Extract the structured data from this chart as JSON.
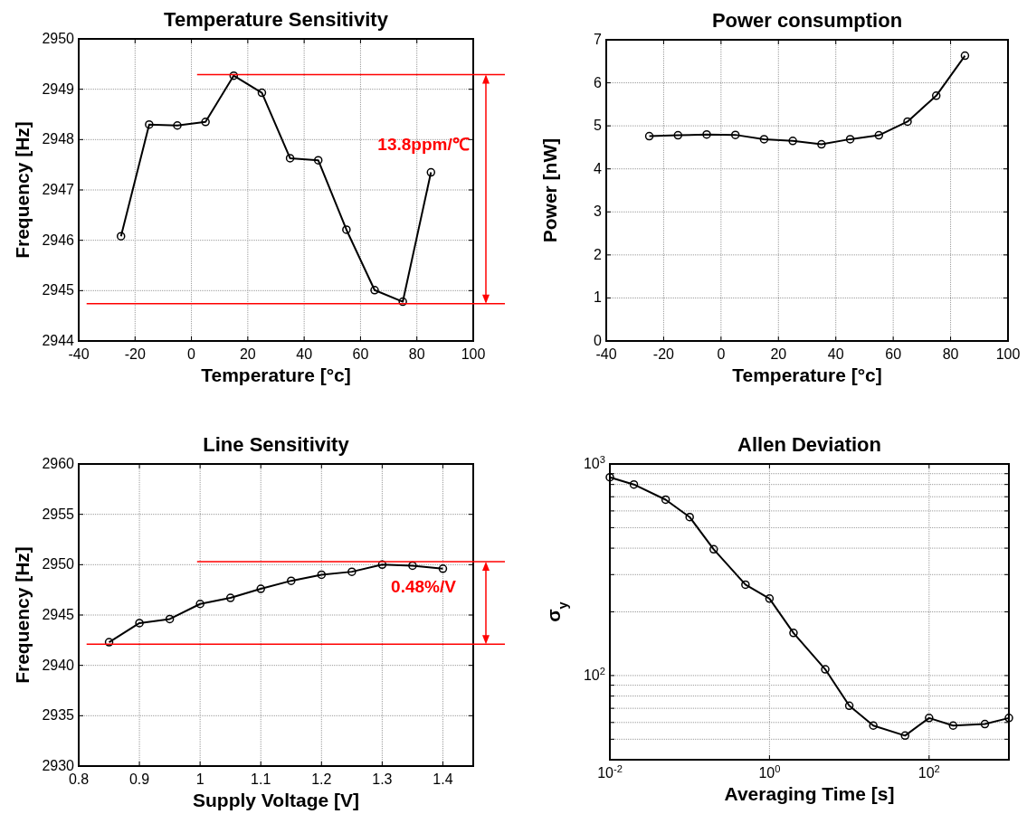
{
  "chart_data": [
    {
      "type": "line",
      "title": "Temperature Sensitivity",
      "xlabel": "Temperature [°c]",
      "ylabel": "Frequency [Hz]",
      "x": [
        -25,
        -15,
        -5,
        5,
        15,
        25,
        35,
        45,
        55,
        65,
        75,
        85
      ],
      "series": [
        {
          "color": "#000000",
          "values": [
            2946.08,
            2948.3,
            2948.28,
            2948.35,
            2949.27,
            2948.93,
            2947.63,
            2947.59,
            2946.21,
            2945.01,
            2944.78,
            2947.35
          ]
        }
      ],
      "xlim": [
        -40,
        100
      ],
      "xticks": [
        -40,
        -20,
        0,
        20,
        40,
        60,
        80,
        100
      ],
      "ylim": [
        2944,
        2950
      ],
      "yticks": [
        2944,
        2945,
        2946,
        2947,
        2948,
        2949,
        2950
      ],
      "grid": true,
      "marker": "circle",
      "line_style": "solid",
      "ref_lines": [
        {
          "axis": "y",
          "value": 2949.29,
          "color": "#ff0000"
        },
        {
          "axis": "y",
          "value": 2944.74,
          "color": "#ff0000"
        }
      ],
      "annotations": [
        "13.8ppm/℃"
      ]
    },
    {
      "type": "line",
      "title": "Power consumption",
      "xlabel": "Temperature [°c]",
      "ylabel": "Power [nW]",
      "x": [
        -25,
        -15,
        -5,
        5,
        15,
        25,
        35,
        45,
        55,
        65,
        75,
        85
      ],
      "series": [
        {
          "color": "#000000",
          "values": [
            4.76,
            4.78,
            4.8,
            4.79,
            4.69,
            4.65,
            4.57,
            4.69,
            4.78,
            5.1,
            5.7,
            6.63
          ]
        }
      ],
      "xlim": [
        -40,
        100
      ],
      "xticks": [
        -40,
        -20,
        0,
        20,
        40,
        60,
        80,
        100
      ],
      "ylim": [
        0,
        7
      ],
      "yticks": [
        0,
        1,
        2,
        3,
        4,
        5,
        6,
        7
      ],
      "grid": true,
      "marker": "circle",
      "line_style": "solid"
    },
    {
      "type": "line",
      "title": "Line Sensitivity",
      "xlabel": "Supply Voltage [V]",
      "ylabel": "Frequency [Hz]",
      "x": [
        0.85,
        0.9,
        0.95,
        1,
        1.05,
        1.1,
        1.15,
        1.2,
        1.25,
        1.3,
        1.35,
        1.4
      ],
      "series": [
        {
          "color": "#000000",
          "values": [
            2942.3,
            2944.2,
            2944.6,
            2946.1,
            2946.7,
            2947.6,
            2948.4,
            2949.0,
            2949.3,
            2950.0,
            2949.9,
            2949.6
          ]
        }
      ],
      "xlim": [
        0.8,
        1.45
      ],
      "xticks": [
        0.8,
        0.9,
        1,
        1.1,
        1.2,
        1.3,
        1.4
      ],
      "ylim": [
        2930,
        2960
      ],
      "yticks": [
        2930,
        2935,
        2940,
        2945,
        2950,
        2955,
        2960
      ],
      "grid": true,
      "marker": "circle",
      "line_style": "solid",
      "ref_lines": [
        {
          "axis": "y",
          "value": 2950.3,
          "color": "#ff0000"
        },
        {
          "axis": "y",
          "value": 2942.1,
          "color": "#ff0000"
        }
      ],
      "annotations": [
        "0.48%/V"
      ]
    },
    {
      "type": "line",
      "title": "Allen Deviation",
      "xlabel": "Averaging Time [s]",
      "ylabel": "σ$_{y}$",
      "x": [
        0.01,
        0.02,
        0.05,
        0.1,
        0.2,
        0.5,
        1,
        2,
        5,
        10,
        20,
        50,
        100,
        200,
        500,
        1000
      ],
      "series": [
        {
          "color": "#000000",
          "values": [
            865,
            800,
            678,
            561,
            395,
            269,
            231,
            159,
            107,
            72,
            58,
            52,
            63,
            58,
            59,
            63
          ]
        }
      ],
      "log": "xy",
      "xlim": [
        0.01,
        1000
      ],
      "xticks": [
        {
          "value": 0.01,
          "label": "10$^{-2}$"
        },
        {
          "value": 1,
          "label": "10$^{0}$"
        },
        {
          "value": 100,
          "label": "10$^{2}$"
        }
      ],
      "ylim": [
        40,
        1000
      ],
      "yticks": [
        {
          "value": 50,
          "label": null
        },
        {
          "value": 60,
          "label": null
        },
        {
          "value": 70,
          "label": null
        },
        {
          "value": 80,
          "label": null
        },
        {
          "value": 90,
          "label": null
        },
        {
          "value": 100,
          "label": "10$^{2}$"
        },
        {
          "value": 200,
          "label": null
        },
        {
          "value": 300,
          "label": null
        },
        {
          "value": 400,
          "label": null
        },
        {
          "value": 500,
          "label": null
        },
        {
          "value": 600,
          "label": null
        },
        {
          "value": 700,
          "label": null
        },
        {
          "value": 800,
          "label": null
        },
        {
          "value": 900,
          "label": null
        },
        {
          "value": 1000,
          "label": "10$^{3}$"
        }
      ],
      "grid": true,
      "marker": "circle",
      "line_style": "solid"
    }
  ]
}
